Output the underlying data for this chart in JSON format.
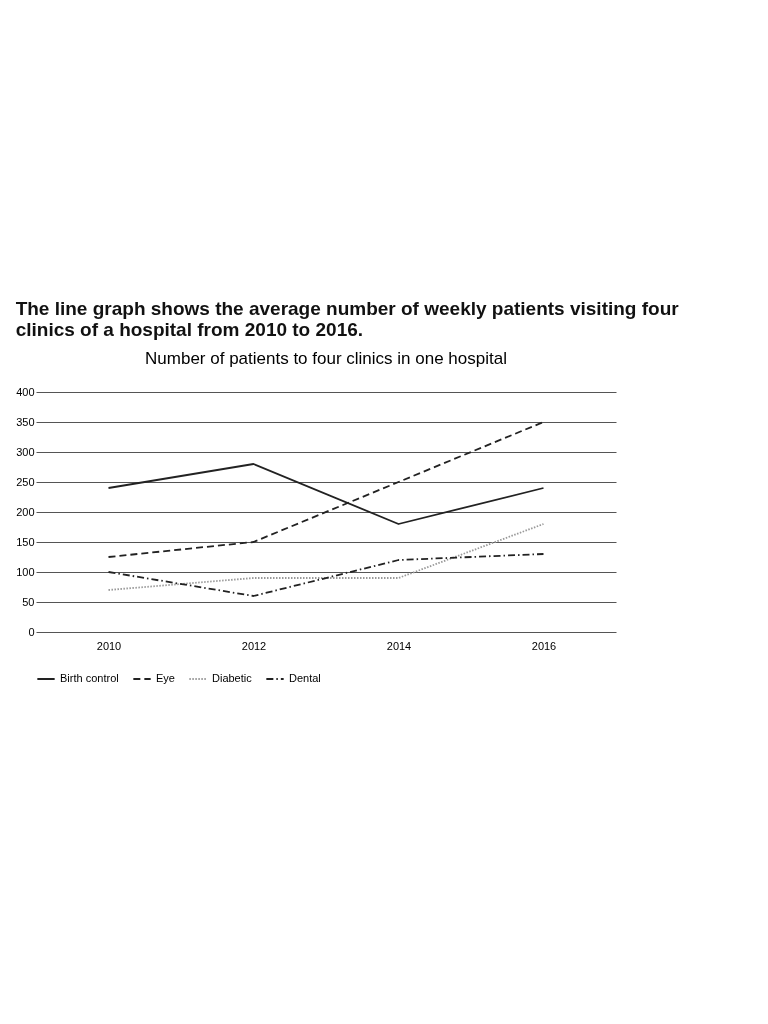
{
  "chart_data": {
    "type": "line",
    "title": "The line graph shows the average number of weekly patients visiting four\nclinics of a hospital from 2010 to 2016.",
    "subtitle": "Number of patients to four clinics in one hospital",
    "categories": [
      "2010",
      "2012",
      "2014",
      "2016"
    ],
    "series": [
      {
        "name": "Birth control",
        "color": "#222222",
        "line_style": "solid",
        "values": [
          240,
          280,
          180,
          240
        ]
      },
      {
        "name": "Eye",
        "color": "#222222",
        "line_style": "dashed",
        "values": [
          125,
          150,
          250,
          350
        ]
      },
      {
        "name": "Diabetic",
        "color": "#999999",
        "line_style": "dotted",
        "values": [
          70,
          90,
          90,
          180
        ]
      },
      {
        "name": "Dental",
        "color": "#222222",
        "line_style": "dashdot",
        "values": [
          100,
          60,
          120,
          130
        ]
      }
    ],
    "ylim": [
      0,
      400
    ],
    "yticks": [
      0,
      50,
      100,
      150,
      200,
      250,
      300,
      350,
      400
    ],
    "grid": "y",
    "legend": "bottom",
    "marker": "none"
  }
}
